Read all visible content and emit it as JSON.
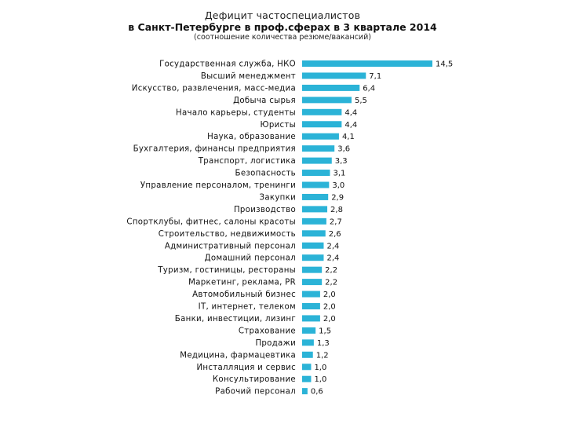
{
  "chart_data": {
    "type": "bar",
    "orientation": "horizontal",
    "title_line1": "Дефицит частоспециалистов",
    "title_line2": "в Санкт-Петербурге в проф.сферах в 3 квартале 2014",
    "subtitle": "(соотношение количества резюме/вакансий)",
    "bar_color": "#2bb3d7",
    "categories": [
      "Государственная служба, НКО",
      "Высший менеджмент",
      "Искусство, развлечения, масс-медиа",
      "Добыча сырья",
      "Начало карьеры, студенты",
      "Юристы",
      "Наука, образование",
      "Бухгалтерия, финансы предприятия",
      "Транспорт, логистика",
      "Безопасность",
      "Управление персоналом, тренинги",
      "Закупки",
      "Производство",
      "Спортклубы, фитнес, салоны красоты",
      "Строительство, недвижимость",
      "Административный персонал",
      "Домашний персонал",
      "Туризм, гостиницы, рестораны",
      "Маркетинг, реклама, PR",
      "Автомобильный бизнес",
      "IT, интернет, телеком",
      "Банки, инвестиции, лизинг",
      "Страхование",
      "Продажи",
      "Медицина, фармацевтика",
      "Инсталляция и сервис",
      "Консультирование",
      "Рабочий персонал"
    ],
    "values": [
      14.5,
      7.1,
      6.4,
      5.5,
      4.4,
      4.4,
      4.1,
      3.6,
      3.3,
      3.1,
      3.0,
      2.9,
      2.8,
      2.7,
      2.6,
      2.4,
      2.4,
      2.2,
      2.2,
      2.0,
      2.0,
      2.0,
      1.5,
      1.3,
      1.2,
      1.0,
      1.0,
      0.6
    ],
    "value_labels": [
      "14,5",
      "7,1",
      "6,4",
      "5,5",
      "4,4",
      "4,4",
      "4,1",
      "3,6",
      "3,3",
      "3,1",
      "3,0",
      "2,9",
      "2,8",
      "2,7",
      "2,6",
      "2,4",
      "2,4",
      "2,2",
      "2,2",
      "2,0",
      "2,0",
      "2,0",
      "1,5",
      "1,3",
      "1,2",
      "1,0",
      "1,0",
      "0,6"
    ],
    "xlim": [
      0,
      14.5
    ],
    "grid": false,
    "legend": "none"
  }
}
